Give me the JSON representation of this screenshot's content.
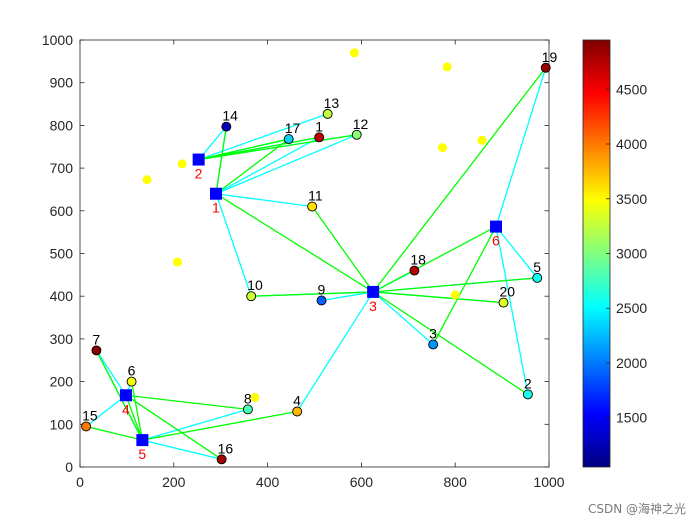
{
  "watermark": "CSDN @海神之光",
  "colors": {
    "link_center": "#00ffff",
    "link_green": "#00ff00",
    "candidate": "#ffff00",
    "center_square": "#0000ff",
    "center_label": "#ff0000"
  },
  "chart_data": {
    "type": "scatter",
    "title": "",
    "xlabel": "",
    "ylabel": "",
    "xlim": [
      0,
      1000
    ],
    "ylim": [
      0,
      1000
    ],
    "xticks": [
      0,
      200,
      400,
      600,
      800,
      1000
    ],
    "yticks": [
      0,
      100,
      200,
      300,
      400,
      500,
      600,
      700,
      800,
      900,
      1000
    ],
    "grid": false,
    "colorbar": {
      "colormap": "jet",
      "range": [
        1050,
        4950
      ],
      "ticks": [
        1500,
        2000,
        2500,
        3000,
        3500,
        4000,
        4500
      ]
    },
    "demand_points": [
      {
        "id": "1",
        "x": 510,
        "y": 772,
        "value": 4700
      },
      {
        "id": "2",
        "x": 955,
        "y": 170,
        "value": 2600
      },
      {
        "id": "3",
        "x": 753,
        "y": 287,
        "value": 2100
      },
      {
        "id": "4",
        "x": 463,
        "y": 130,
        "value": 3750
      },
      {
        "id": "5",
        "x": 975,
        "y": 443,
        "value": 2550
      },
      {
        "id": "6",
        "x": 110,
        "y": 200,
        "value": 3450
      },
      {
        "id": "7",
        "x": 35,
        "y": 273,
        "value": 4900
      },
      {
        "id": "8",
        "x": 358,
        "y": 135,
        "value": 2800
      },
      {
        "id": "9",
        "x": 515,
        "y": 390,
        "value": 1900
      },
      {
        "id": "10",
        "x": 365,
        "y": 400,
        "value": 3300
      },
      {
        "id": "11",
        "x": 495,
        "y": 610,
        "value": 3600
      },
      {
        "id": "12",
        "x": 590,
        "y": 778,
        "value": 3050
      },
      {
        "id": "13",
        "x": 528,
        "y": 827,
        "value": 3250
      },
      {
        "id": "14",
        "x": 312,
        "y": 797,
        "value": 1250
      },
      {
        "id": "15",
        "x": 13,
        "y": 95,
        "value": 4000
      },
      {
        "id": "16",
        "x": 302,
        "y": 18,
        "value": 4800
      },
      {
        "id": "17",
        "x": 445,
        "y": 768,
        "value": 2350
      },
      {
        "id": "18",
        "x": 713,
        "y": 460,
        "value": 4750
      },
      {
        "id": "19",
        "x": 993,
        "y": 935,
        "value": 4850
      },
      {
        "id": "20",
        "x": 903,
        "y": 385,
        "value": 3350
      }
    ],
    "centers": [
      {
        "id": "1",
        "x": 290,
        "y": 640
      },
      {
        "id": "2",
        "x": 253,
        "y": 720
      },
      {
        "id": "3",
        "x": 625,
        "y": 410
      },
      {
        "id": "4",
        "x": 98,
        "y": 168
      },
      {
        "id": "5",
        "x": 133,
        "y": 63
      },
      {
        "id": "6",
        "x": 887,
        "y": 563
      }
    ],
    "candidate_points": [
      {
        "x": 585,
        "y": 970
      },
      {
        "x": 783,
        "y": 937
      },
      {
        "x": 143,
        "y": 673
      },
      {
        "x": 218,
        "y": 710
      },
      {
        "x": 773,
        "y": 748
      },
      {
        "x": 857,
        "y": 765
      },
      {
        "x": 208,
        "y": 480
      },
      {
        "x": 800,
        "y": 403
      },
      {
        "x": 373,
        "y": 163
      }
    ],
    "center_links": [
      [
        "1",
        "14"
      ],
      [
        "1",
        "10"
      ],
      [
        "1",
        "11"
      ],
      [
        "1",
        "12"
      ],
      [
        "1",
        "1"
      ],
      [
        "2",
        "14"
      ],
      [
        "2",
        "17"
      ],
      [
        "2",
        "13"
      ],
      [
        "2",
        "1"
      ],
      [
        "2",
        "12"
      ],
      [
        "3",
        "9"
      ],
      [
        "3",
        "10"
      ],
      [
        "3",
        "18"
      ],
      [
        "3",
        "5"
      ],
      [
        "3",
        "3"
      ],
      [
        "3",
        "4"
      ],
      [
        "3",
        "20"
      ],
      [
        "4",
        "15"
      ],
      [
        "4",
        "6"
      ],
      [
        "4",
        "7"
      ],
      [
        "5",
        "8"
      ],
      [
        "5",
        "16"
      ],
      [
        "5",
        "7"
      ],
      [
        "6",
        "19"
      ],
      [
        "6",
        "5"
      ],
      [
        "6",
        "2"
      ]
    ],
    "green_links": [
      [
        [
          253,
          720
        ],
        [
          445,
          768
        ]
      ],
      [
        [
          253,
          720
        ],
        [
          510,
          772
        ]
      ],
      [
        [
          253,
          720
        ],
        [
          590,
          778
        ]
      ],
      [
        [
          290,
          640
        ],
        [
          312,
          797
        ]
      ],
      [
        [
          290,
          640
        ],
        [
          445,
          768
        ]
      ],
      [
        [
          290,
          640
        ],
        [
          625,
          410
        ]
      ],
      [
        [
          495,
          610
        ],
        [
          625,
          410
        ]
      ],
      [
        [
          365,
          400
        ],
        [
          625,
          410
        ]
      ],
      [
        [
          625,
          410
        ],
        [
          993,
          935
        ]
      ],
      [
        [
          625,
          410
        ],
        [
          887,
          563
        ]
      ],
      [
        [
          625,
          410
        ],
        [
          975,
          443
        ]
      ],
      [
        [
          625,
          410
        ],
        [
          903,
          385
        ]
      ],
      [
        [
          625,
          410
        ],
        [
          955,
          170
        ]
      ],
      [
        [
          753,
          287
        ],
        [
          887,
          563
        ]
      ],
      [
        [
          98,
          168
        ],
        [
          358,
          135
        ]
      ],
      [
        [
          98,
          168
        ],
        [
          133,
          63
        ]
      ],
      [
        [
          98,
          168
        ],
        [
          302,
          18
        ]
      ],
      [
        [
          13,
          95
        ],
        [
          133,
          63
        ]
      ],
      [
        [
          35,
          273
        ],
        [
          133,
          63
        ]
      ],
      [
        [
          110,
          200
        ],
        [
          133,
          63
        ]
      ],
      [
        [
          133,
          63
        ],
        [
          463,
          130
        ]
      ]
    ]
  }
}
